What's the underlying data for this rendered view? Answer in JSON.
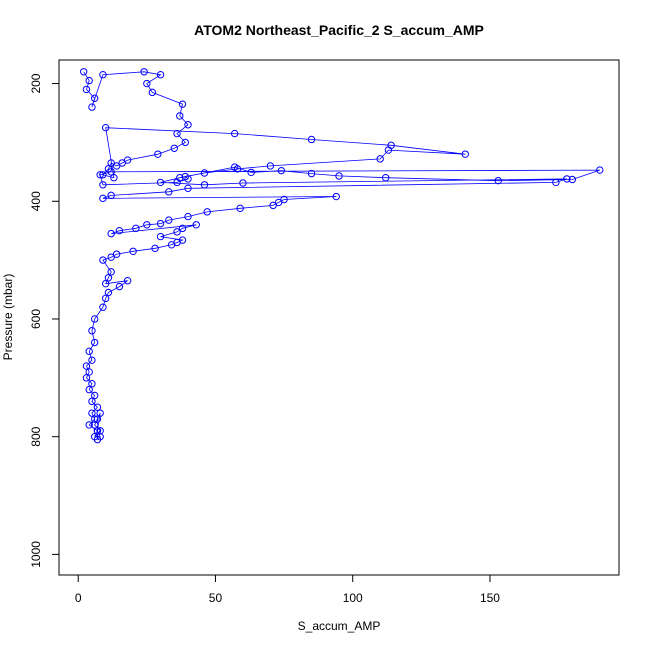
{
  "chart_data": {
    "type": "line",
    "title": "ATOM2 Northeast_Pacific_2 S_accum_AMP",
    "xlabel": "S_accum_AMP",
    "ylabel": "Pressure (mbar)",
    "xlim": [
      -7,
      197
    ],
    "ylim": [
      1035,
      160
    ],
    "y_reversed": true,
    "x_ticks": [
      0,
      50,
      100,
      150
    ],
    "y_ticks": [
      200,
      400,
      600,
      800,
      1000
    ],
    "grid": false,
    "legend": "none",
    "colors": {
      "series": "#0000ff",
      "axis": "#000000"
    },
    "marker": "open-circle",
    "series": [
      {
        "x": [
          2,
          4,
          3,
          6,
          5,
          9,
          24,
          30,
          25,
          27,
          38,
          37,
          40,
          36,
          39,
          35,
          29,
          18,
          16,
          14,
          12,
          11,
          9,
          13,
          10,
          57,
          85,
          114,
          141,
          113,
          110,
          70,
          58,
          46,
          39,
          40,
          36,
          9,
          8,
          12,
          190,
          180,
          153,
          112,
          95,
          85,
          74,
          63,
          57,
          37,
          30,
          46,
          60,
          178,
          174,
          40,
          33,
          12,
          9,
          94,
          75,
          73,
          71,
          59,
          47,
          40,
          33,
          30,
          25,
          21,
          15,
          12,
          43,
          38,
          36,
          30,
          38,
          36,
          34,
          28,
          20,
          14,
          12,
          9,
          12,
          11,
          10,
          18,
          15,
          11,
          10,
          9,
          6,
          5,
          6,
          4,
          5,
          3,
          4,
          3,
          5,
          4,
          6,
          5,
          7,
          5,
          6,
          4,
          7,
          6,
          8,
          6,
          7,
          8,
          7,
          8,
          7
        ],
        "y": [
          180,
          195,
          210,
          225,
          240,
          185,
          180,
          185,
          200,
          215,
          235,
          255,
          270,
          285,
          300,
          310,
          320,
          330,
          335,
          340,
          335,
          345,
          355,
          360,
          275,
          285,
          295,
          305,
          320,
          313,
          328,
          340,
          345,
          352,
          358,
          362,
          368,
          372,
          355,
          350,
          347,
          363,
          365,
          360,
          357,
          353,
          348,
          351,
          342,
          360,
          368,
          372,
          369,
          362,
          368,
          378,
          384,
          390,
          395,
          392,
          397,
          402,
          407,
          412,
          418,
          426,
          432,
          438,
          440,
          446,
          450,
          455,
          440,
          446,
          452,
          460,
          466,
          470,
          474,
          480,
          485,
          490,
          495,
          500,
          520,
          530,
          540,
          535,
          545,
          555,
          565,
          580,
          600,
          620,
          640,
          655,
          670,
          680,
          690,
          700,
          710,
          720,
          730,
          740,
          750,
          760,
          770,
          780,
          790,
          800,
          790,
          780,
          770,
          760,
          790,
          800,
          805
        ]
      }
    ]
  }
}
